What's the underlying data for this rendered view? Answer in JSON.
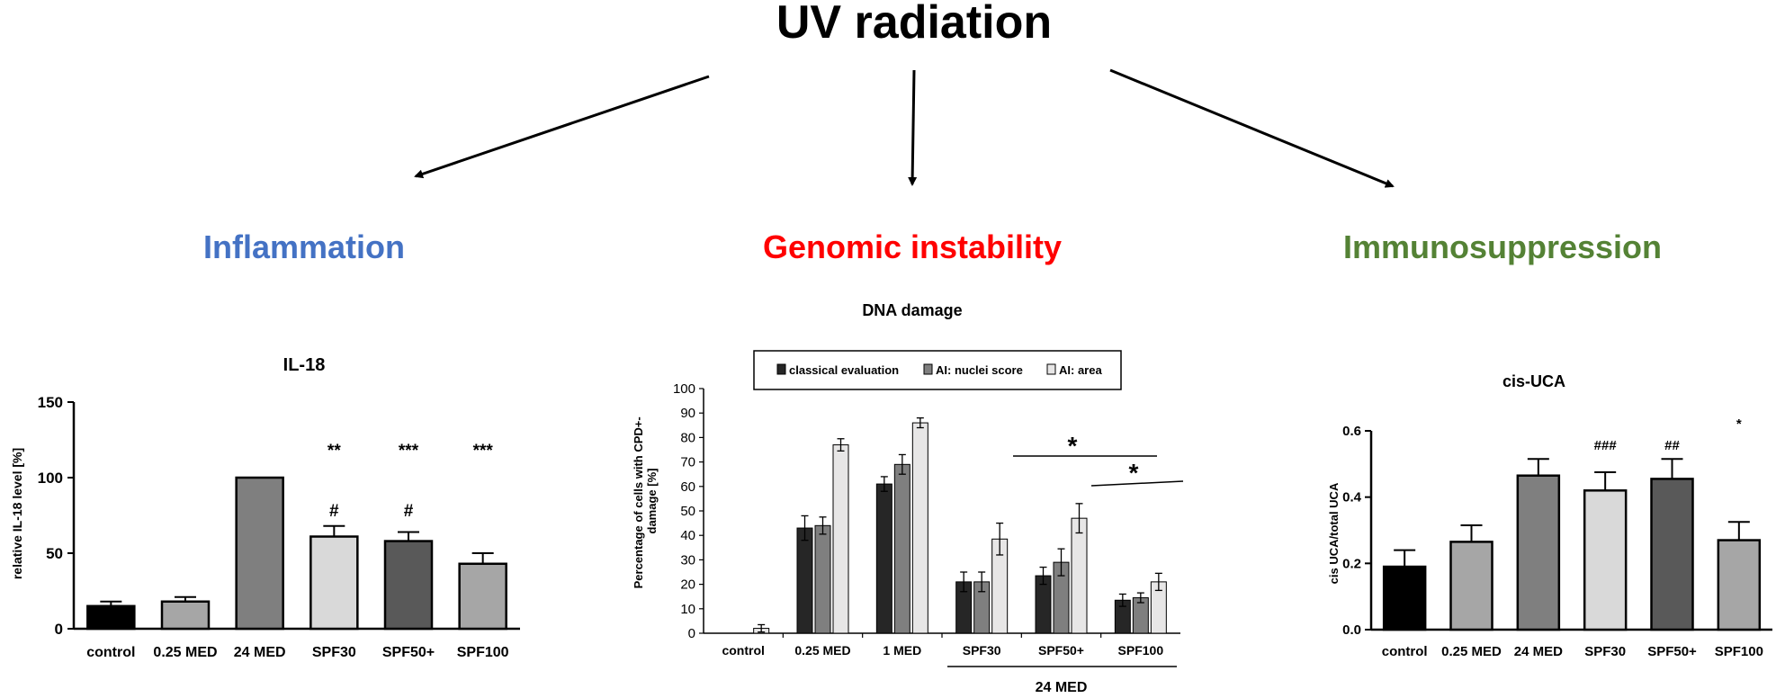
{
  "header": {
    "title": "UV radiation",
    "branches": [
      {
        "label": "Inflammation",
        "color": "#4472c4"
      },
      {
        "label": "Genomic instability",
        "color": "#ff0000"
      },
      {
        "label": "Immunosuppression",
        "color": "#548235"
      }
    ]
  },
  "chart_data": [
    {
      "id": "il18",
      "type": "bar",
      "title": "IL-18",
      "xlabel": "",
      "ylabel": "relative IL-18 level [%]",
      "ylim": [
        0,
        150
      ],
      "yticks": [
        "0",
        "50",
        "100",
        "150"
      ],
      "categories": [
        "control",
        "0.25 MED",
        "24 MED",
        "SPF30",
        "SPF50+",
        "SPF100"
      ],
      "values": [
        15,
        18,
        100,
        61,
        58,
        43
      ],
      "errors": [
        3,
        3,
        0,
        7,
        6,
        7
      ],
      "bar_colors": [
        "#000000",
        "#a6a6a6",
        "#7f7f7f",
        "#d9d9d9",
        "#595959",
        "#a6a6a6"
      ],
      "annotations_top": [
        "",
        "",
        "",
        "**",
        "***",
        "***"
      ],
      "annotations_bottom": [
        "",
        "",
        "",
        "#",
        "#",
        ""
      ]
    },
    {
      "id": "dna",
      "type": "bar",
      "title": "DNA damage",
      "xlabel": "",
      "ylabel": "Percentage of cells with CPD+-damage [%]",
      "ylabel_lines": [
        "Percentage of cells with CPD+-",
        "damage  [%]"
      ],
      "ylim": [
        0,
        100
      ],
      "yticks": [
        "0",
        "10",
        "20",
        "30",
        "40",
        "50",
        "60",
        "70",
        "80",
        "90",
        "100"
      ],
      "categories": [
        "control",
        "0.25 MED",
        "1 MED",
        "SPF30",
        "SPF50+",
        "SPF100"
      ],
      "series": [
        {
          "name": "classical evaluation",
          "color": "#262626",
          "values": [
            0,
            43,
            61,
            21,
            23.5,
            13.5
          ],
          "errors": [
            0,
            5,
            3,
            4,
            3.5,
            2.5
          ]
        },
        {
          "name": "AI: nuclei score",
          "color": "#7f7f7f",
          "values": [
            0,
            44,
            69,
            21,
            29,
            14.5
          ],
          "errors": [
            0,
            3.5,
            4,
            4,
            5.5,
            2
          ]
        },
        {
          "name": "AI: area",
          "color": "#e7e6e6",
          "values": [
            2,
            77,
            86,
            38.5,
            47,
            21
          ],
          "errors": [
            1.5,
            2.5,
            2,
            6.5,
            6,
            3.5
          ]
        }
      ],
      "group_label": "24 MED",
      "significance": [
        "*",
        "*"
      ]
    },
    {
      "id": "cisuca",
      "type": "bar",
      "title": "cis-UCA",
      "xlabel": "",
      "ylabel": "cis UCA/total UCA",
      "ylim": [
        0,
        0.6
      ],
      "yticks": [
        "0.0",
        "0.2",
        "0.4",
        "0.6"
      ],
      "categories": [
        "control",
        "0.25 MED",
        "24 MED",
        "SPF30",
        "SPF50+",
        "SPF100"
      ],
      "values": [
        0.19,
        0.265,
        0.465,
        0.42,
        0.455,
        0.27
      ],
      "errors": [
        0.05,
        0.05,
        0.05,
        0.055,
        0.06,
        0.055
      ],
      "bar_colors": [
        "#000000",
        "#a6a6a6",
        "#7f7f7f",
        "#d9d9d9",
        "#595959",
        "#a6a6a6"
      ],
      "annotations_top": [
        "",
        "",
        "",
        "###",
        "##",
        "*"
      ]
    }
  ]
}
